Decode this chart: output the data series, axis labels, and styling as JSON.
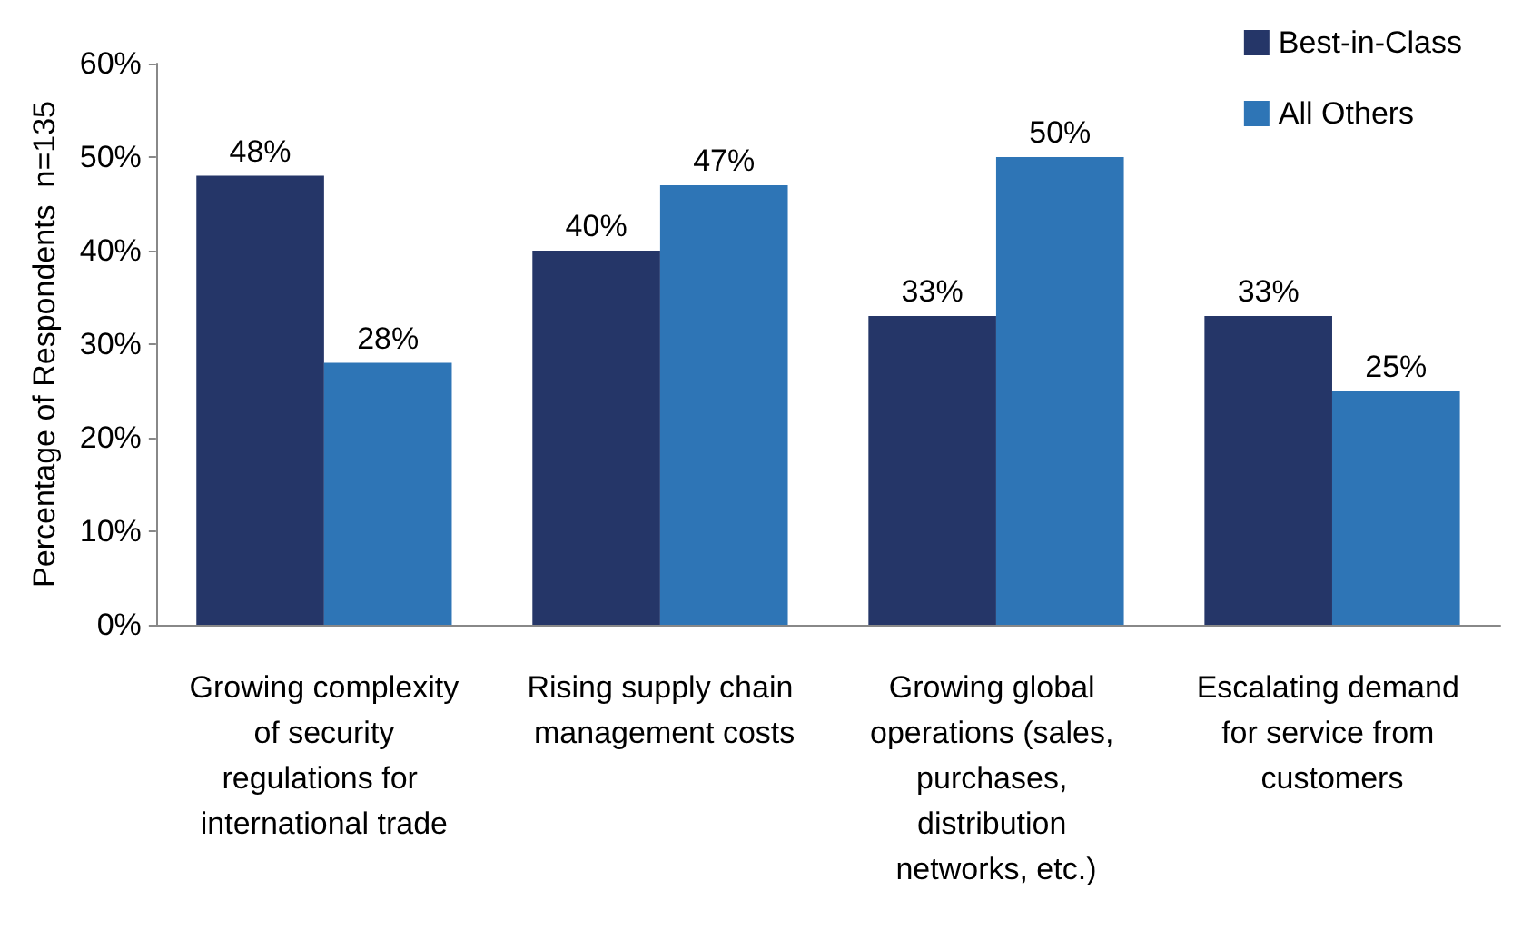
{
  "chart_data": {
    "type": "bar",
    "ylabel": "Percentage of Respondents  n=135",
    "categories": [
      "Growing complexity of security regulations for international trade",
      "Rising supply chain management costs",
      "Growing global operations (sales, purchases, distribution networks, etc.)",
      "Escalating demand for service from customers"
    ],
    "series": [
      {
        "name": "Best-in-Class",
        "color": "#253668",
        "values": [
          48,
          40,
          33,
          33
        ],
        "value_labels": [
          "48%",
          "40%",
          "33%",
          "33%"
        ]
      },
      {
        "name": "All Others",
        "color": "#2e75b6",
        "values": [
          28,
          47,
          50,
          25
        ],
        "value_labels": [
          "28%",
          "47%",
          "50%",
          "25%"
        ]
      }
    ],
    "ylim": [
      0,
      60
    ],
    "yticks": [
      {
        "value": 0,
        "label": "0%"
      },
      {
        "value": 10,
        "label": "10%"
      },
      {
        "value": 20,
        "label": "20%"
      },
      {
        "value": 30,
        "label": "30%"
      },
      {
        "value": 40,
        "label": "40%"
      },
      {
        "value": 50,
        "label": "50%"
      },
      {
        "value": 60,
        "label": "60%"
      }
    ],
    "grid": false,
    "legend": "top right"
  }
}
